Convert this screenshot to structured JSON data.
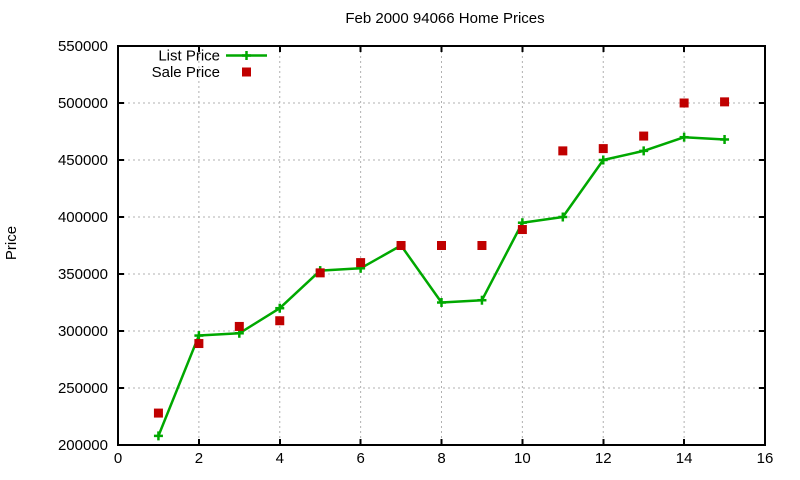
{
  "chart_data": {
    "type": "line",
    "title": "Feb 2000 94066 Home Prices",
    "xlabel": "",
    "ylabel": "Price",
    "xlim": [
      0,
      16
    ],
    "ylim": [
      200000,
      550000
    ],
    "xticks": [
      0,
      2,
      4,
      6,
      8,
      10,
      12,
      14,
      16
    ],
    "yticks": [
      200000,
      250000,
      300000,
      350000,
      400000,
      450000,
      500000,
      550000
    ],
    "grid": true,
    "legend_position": "top-left-inside",
    "x": [
      1,
      2,
      3,
      4,
      5,
      6,
      7,
      8,
      9,
      10,
      11,
      12,
      13,
      14,
      15
    ],
    "series": [
      {
        "name": "List Price",
        "type": "line",
        "marker": "plus",
        "color": "#00a800",
        "values": [
          208000,
          296000,
          298000,
          320000,
          353000,
          355000,
          375000,
          325000,
          327000,
          395000,
          400000,
          450000,
          458000,
          470000,
          468000
        ]
      },
      {
        "name": "Sale Price",
        "type": "scatter",
        "marker": "square",
        "color": "#c00000",
        "values": [
          228000,
          289000,
          304000,
          309000,
          351000,
          360000,
          375000,
          375000,
          375000,
          389000,
          458000,
          460000,
          471000,
          500000,
          501000
        ]
      }
    ],
    "colors": {
      "axis": "#000000",
      "grid": "#b0b0b0",
      "text": "#000000",
      "background": "#ffffff"
    }
  }
}
